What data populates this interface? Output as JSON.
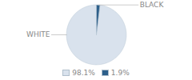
{
  "chart_data": {
    "type": "pie",
    "categories": [
      "WHITE",
      "BLACK"
    ],
    "values": [
      98.1,
      1.9
    ],
    "value_labels": [
      "98.1%",
      "1.9%"
    ],
    "colors": [
      "#d9e2ed",
      "#2d5f8a"
    ],
    "legend": "bottom"
  }
}
